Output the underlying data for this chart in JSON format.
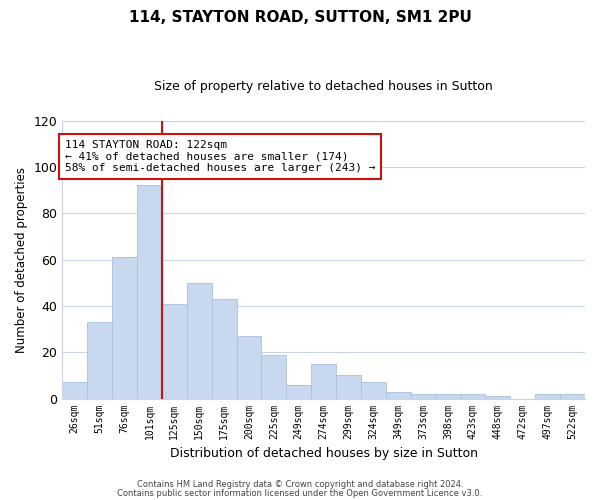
{
  "title": "114, STAYTON ROAD, SUTTON, SM1 2PU",
  "subtitle": "Size of property relative to detached houses in Sutton",
  "xlabel": "Distribution of detached houses by size in Sutton",
  "ylabel": "Number of detached properties",
  "bar_color": "#c8d8ee",
  "bar_edge_color": "#a8c0de",
  "vline_color": "#cc1111",
  "categories": [
    "26sqm",
    "51sqm",
    "76sqm",
    "101sqm",
    "125sqm",
    "150sqm",
    "175sqm",
    "200sqm",
    "225sqm",
    "249sqm",
    "274sqm",
    "299sqm",
    "324sqm",
    "349sqm",
    "373sqm",
    "398sqm",
    "423sqm",
    "448sqm",
    "472sqm",
    "497sqm",
    "522sqm"
  ],
  "values": [
    7,
    33,
    61,
    92,
    41,
    50,
    43,
    27,
    19,
    6,
    15,
    10,
    7,
    3,
    2,
    2,
    2,
    1,
    0,
    2,
    2
  ],
  "vline_after_index": 3,
  "ylim": [
    0,
    120
  ],
  "yticks": [
    0,
    20,
    40,
    60,
    80,
    100,
    120
  ],
  "annotation_line1": "114 STAYTON ROAD: 122sqm",
  "annotation_line2": "← 41% of detached houses are smaller (174)",
  "annotation_line3": "58% of semi-detached houses are larger (243) →",
  "footer_line1": "Contains HM Land Registry data © Crown copyright and database right 2024.",
  "footer_line2": "Contains public sector information licensed under the Open Government Licence v3.0.",
  "background_color": "#ffffff",
  "grid_color": "#c8d4e8"
}
